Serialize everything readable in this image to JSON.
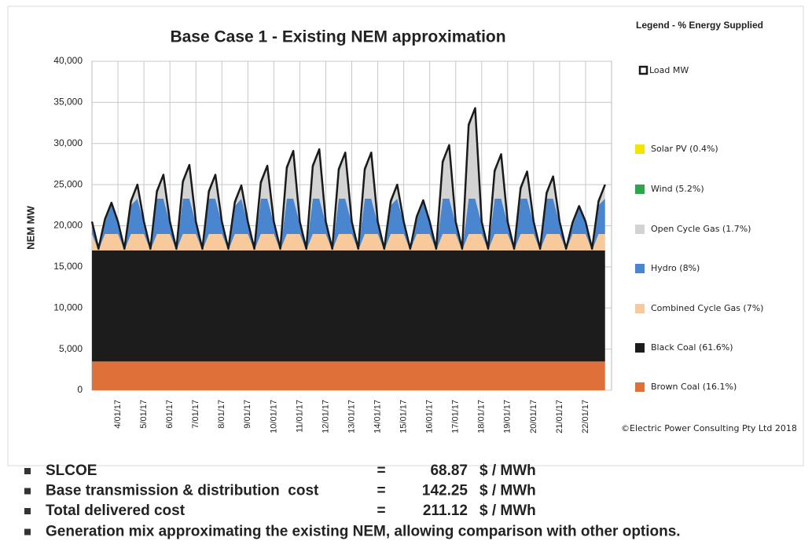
{
  "chart_data": {
    "type": "stacked_area",
    "title": "Base Case 1 - Existing NEM approximation",
    "y_label": "NEM MW",
    "legend_title": "Legend - % Energy Supplied",
    "legend": "right",
    "grid": true,
    "credit": "©Electric Power Consulting Pty Ltd 2018",
    "ylim": [
      0,
      40000
    ],
    "yticks": [
      0,
      {
        "value": 5000,
        "label": "5,000"
      },
      {
        "value": 10000,
        "label": "10,000"
      },
      {
        "value": 15000,
        "label": "15,000"
      },
      {
        "value": 20000,
        "label": "20,000"
      },
      {
        "value": 25000,
        "label": "25,000"
      },
      {
        "value": 30000,
        "label": "30,000"
      },
      {
        "value": 35000,
        "label": "35,000"
      },
      {
        "value": 40000,
        "label": "40,000"
      }
    ],
    "categories": [
      null,
      null,
      null,
      null,
      "4/01/17",
      null,
      null,
      null,
      "5/01/17",
      null,
      null,
      null,
      "6/01/17",
      null,
      null,
      null,
      "7/01/17",
      null,
      null,
      null,
      "8/01/17",
      null,
      null,
      null,
      "9/01/17",
      null,
      null,
      null,
      "10/01/17",
      null,
      null,
      null,
      "11/01/17",
      null,
      null,
      null,
      "12/01/17",
      null,
      null,
      null,
      "13/01/17",
      null,
      null,
      null,
      "14/01/17",
      null,
      null,
      null,
      "15/01/17",
      null,
      null,
      null,
      "16/01/17",
      null,
      null,
      null,
      "17/01/17",
      null,
      null,
      null,
      "18/01/17",
      null,
      null,
      null,
      "19/01/17",
      null,
      null,
      null,
      "20/01/17",
      null,
      null,
      null,
      "21/01/17",
      null,
      null,
      null,
      "22/01/17",
      null,
      null,
      null
    ],
    "series": [
      {
        "name": "Brown Coal (16.1%)",
        "color": "#e0703a",
        "values": [
          3500,
          3500,
          3500,
          3500,
          3500,
          3500,
          3500,
          3500,
          3500,
          3500,
          3500,
          3500,
          3500,
          3500,
          3500,
          3500,
          3500,
          3500,
          3500,
          3500,
          3500,
          3500,
          3500,
          3500,
          3500,
          3500,
          3500,
          3500,
          3500,
          3500,
          3500,
          3500,
          3500,
          3500,
          3500,
          3500,
          3500,
          3500,
          3500,
          3500,
          3500,
          3500,
          3500,
          3500,
          3500,
          3500,
          3500,
          3500,
          3500,
          3500,
          3500,
          3500,
          3500,
          3500,
          3500,
          3500,
          3500,
          3500,
          3500,
          3500,
          3500,
          3500,
          3500,
          3500,
          3500,
          3500,
          3500,
          3500,
          3500,
          3500,
          3500,
          3500,
          3500,
          3500,
          3500,
          3500,
          3500,
          3500,
          3500,
          3500
        ]
      },
      {
        "name": "Black Coal (61.6%)",
        "color": "#1c1c1c",
        "values": [
          13500,
          13500,
          13500,
          13500,
          13500,
          13500,
          13500,
          13500,
          13500,
          13500,
          13500,
          13500,
          13500,
          13500,
          13500,
          13500,
          13500,
          13500,
          13500,
          13500,
          13500,
          13500,
          13500,
          13500,
          13500,
          13500,
          13500,
          13500,
          13500,
          13500,
          13500,
          13500,
          13500,
          13500,
          13500,
          13500,
          13500,
          13500,
          13500,
          13500,
          13500,
          13500,
          13500,
          13500,
          13500,
          13500,
          13500,
          13500,
          13500,
          13500,
          13500,
          13500,
          13500,
          13500,
          13500,
          13500,
          13500,
          13500,
          13500,
          13500,
          13500,
          13500,
          13500,
          13500,
          13500,
          13500,
          13500,
          13500,
          13500,
          13500,
          13500,
          13500,
          13500,
          13500,
          13500,
          13500,
          13500,
          13500,
          13500,
          13500
        ]
      },
      {
        "name": "Combined Cycle Gas (7%)",
        "color": "#f7c99b",
        "values": [
          2000,
          0,
          2000,
          2000,
          2000,
          0,
          2000,
          2000,
          2000,
          0,
          2000,
          2000,
          2000,
          0,
          2000,
          2000,
          2000,
          0,
          2000,
          2000,
          2000,
          0,
          2000,
          2000,
          2000,
          0,
          2000,
          2000,
          2000,
          0,
          2000,
          2000,
          2000,
          0,
          2000,
          2000,
          2000,
          0,
          2000,
          2000,
          2000,
          0,
          2000,
          2000,
          2000,
          0,
          2000,
          2000,
          2000,
          0,
          2000,
          2000,
          2000,
          0,
          2000,
          2000,
          2000,
          0,
          2000,
          2000,
          2000,
          0,
          2000,
          2000,
          2000,
          0,
          2000,
          2000,
          2000,
          0,
          2000,
          2000,
          2000,
          0,
          2000,
          2000,
          2000,
          0,
          2000,
          2000
        ]
      },
      {
        "name": "Hydro (8%)",
        "color": "#4a86d0",
        "values": [
          1300,
          0,
          1300,
          3600,
          1300,
          0,
          3500,
          4300,
          1300,
          0,
          4300,
          4300,
          1300,
          0,
          4300,
          4300,
          1300,
          0,
          4300,
          4300,
          1300,
          0,
          3400,
          4300,
          1300,
          0,
          4300,
          4300,
          1300,
          0,
          4300,
          4300,
          1300,
          0,
          4300,
          4300,
          1300,
          0,
          4300,
          4300,
          1300,
          0,
          4300,
          4300,
          1300,
          0,
          3500,
          4300,
          1300,
          0,
          1600,
          3900,
          1300,
          0,
          4300,
          4300,
          1300,
          0,
          4300,
          4300,
          1300,
          0,
          4300,
          4300,
          1300,
          0,
          4300,
          4300,
          1300,
          0,
          4300,
          4300,
          1300,
          0,
          900,
          3200,
          1300,
          0,
          3500,
          4300
        ]
      },
      {
        "name": "Open Cycle Gas (1.7%)",
        "color": "#d3d3d3",
        "values": [
          0,
          0,
          0,
          0,
          0,
          0,
          0,
          1500,
          0,
          0,
          400,
          2700,
          0,
          0,
          1600,
          3900,
          0,
          0,
          400,
          2700,
          0,
          0,
          0,
          1400,
          0,
          0,
          1500,
          3800,
          0,
          0,
          3300,
          5600,
          0,
          0,
          3500,
          5800,
          0,
          0,
          3100,
          5400,
          0,
          0,
          3100,
          5400,
          0,
          0,
          0,
          1500,
          0,
          0,
          0,
          0,
          0,
          0,
          4000,
          6300,
          0,
          0,
          8500,
          10800,
          0,
          0,
          2900,
          5200,
          0,
          0,
          800,
          3100,
          0,
          0,
          200,
          2500,
          0,
          0,
          0,
          0,
          0,
          0,
          0,
          1500
        ]
      },
      {
        "name": "Wind (5.2%)",
        "color": "#2ca64c",
        "values": [
          200,
          200,
          400,
          200,
          200,
          200,
          400,
          200,
          200,
          200,
          400,
          200,
          200,
          200,
          400,
          200,
          200,
          200,
          400,
          200,
          200,
          200,
          400,
          200,
          200,
          200,
          400,
          200,
          200,
          200,
          400,
          200,
          200,
          200,
          400,
          200,
          200,
          200,
          400,
          200,
          200,
          200,
          400,
          200,
          200,
          200,
          400,
          200,
          200,
          200,
          400,
          200,
          200,
          200,
          400,
          200,
          200,
          200,
          400,
          200,
          200,
          200,
          400,
          200,
          200,
          200,
          400,
          200,
          200,
          200,
          400,
          200,
          200,
          200,
          400,
          200,
          200,
          200,
          400,
          200
        ]
      },
      {
        "name": "Solar PV (0.4%)",
        "color": "#f2e600",
        "values": [
          0,
          0,
          100,
          0,
          0,
          0,
          100,
          0,
          0,
          0,
          100,
          0,
          0,
          0,
          100,
          0,
          0,
          0,
          100,
          0,
          0,
          0,
          100,
          0,
          0,
          0,
          100,
          0,
          0,
          0,
          100,
          0,
          0,
          0,
          100,
          0,
          0,
          0,
          100,
          0,
          0,
          0,
          100,
          0,
          0,
          0,
          100,
          0,
          0,
          0,
          100,
          0,
          0,
          0,
          100,
          0,
          0,
          0,
          100,
          0,
          0,
          0,
          100,
          0,
          0,
          0,
          100,
          0,
          0,
          0,
          100,
          0,
          0,
          0,
          100,
          0,
          0,
          0,
          100,
          0
        ]
      }
    ],
    "load": {
      "name": "Load MW",
      "color": "#1a1a1a",
      "values": [
        20500,
        17200,
        20800,
        22800,
        20500,
        17200,
        23000,
        25000,
        20500,
        17200,
        24200,
        26200,
        20500,
        17200,
        25400,
        27400,
        20500,
        17200,
        24200,
        26200,
        20500,
        17200,
        22900,
        24900,
        20500,
        17200,
        25300,
        27300,
        20500,
        17200,
        27100,
        29100,
        20500,
        17200,
        27300,
        29300,
        20500,
        17200,
        26900,
        28900,
        20500,
        17200,
        26900,
        28900,
        20500,
        17200,
        23000,
        25000,
        20500,
        17200,
        21100,
        23100,
        20500,
        17200,
        27800,
        29800,
        20500,
        17200,
        32300,
        34300,
        20500,
        17200,
        26700,
        28700,
        20500,
        17200,
        24600,
        26600,
        20500,
        17200,
        24000,
        26000,
        20500,
        17200,
        20400,
        22400,
        20500,
        17200,
        23000,
        25000
      ]
    }
  },
  "bullets": [
    {
      "label": "SLCOE",
      "sign": "=",
      "value": 68.87,
      "unit": "$ / MWh"
    },
    {
      "label": "Base transmission & distribution  cost",
      "sign": "=",
      "value": 142.25,
      "unit": "$ / MWh"
    },
    {
      "label": "Total delivered cost",
      "sign": "=",
      "value": 211.12,
      "unit": "$ / MWh"
    },
    {
      "label": "Generation mix approximating the existing NEM, allowing comparison with other options."
    }
  ]
}
